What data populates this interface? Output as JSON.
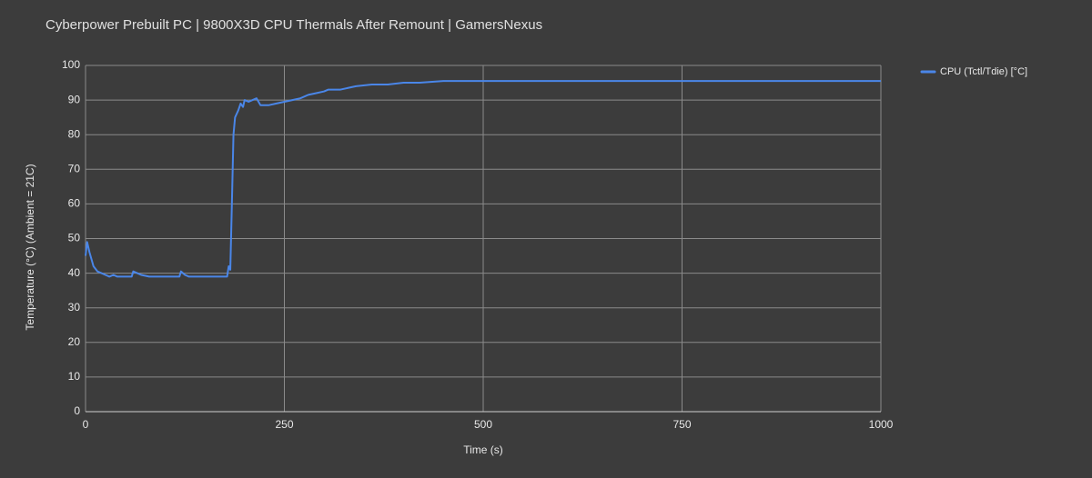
{
  "chart_data": {
    "type": "line",
    "title": "Cyberpower Prebuilt PC | 9800X3D CPU Thermals After Remount | GamersNexus",
    "x_label": "Time (s)",
    "y_label": "Temperature (°C) (Ambient = 21C)",
    "x": [
      0,
      2,
      5,
      10,
      15,
      20,
      25,
      30,
      35,
      40,
      50,
      58,
      60,
      65,
      70,
      80,
      100,
      118,
      120,
      125,
      130,
      150,
      178,
      180,
      182,
      184,
      186,
      188,
      192,
      195,
      198,
      200,
      205,
      210,
      215,
      220,
      230,
      240,
      250,
      260,
      270,
      280,
      290,
      300,
      305,
      320,
      330,
      340,
      360,
      380,
      400,
      420,
      450,
      500,
      550,
      600,
      700,
      800,
      900,
      1000
    ],
    "series": [
      {
        "name": "CPU (Tctl/Tdie) [°C]",
        "color": "#4a86e8",
        "values": [
          45,
          49,
          46,
          42,
          40.5,
          40,
          39.5,
          39,
          39.5,
          39,
          39,
          39,
          40.5,
          40,
          39.5,
          39,
          39,
          39,
          40.5,
          39.5,
          39,
          39,
          39,
          42,
          41,
          60,
          80,
          85,
          87,
          89,
          88,
          90,
          89.5,
          90,
          90.5,
          88.5,
          88.5,
          89,
          89.5,
          90,
          90.5,
          91.5,
          92,
          92.5,
          93,
          93,
          93.5,
          94,
          94.5,
          94.5,
          95,
          95,
          95.5,
          95.5,
          95.5,
          95.5,
          95.5,
          95.5,
          95.5,
          95.5
        ]
      }
    ],
    "xlim": [
      0,
      1000
    ],
    "xticks": [
      0,
      250,
      500,
      750,
      1000
    ],
    "ylim": [
      0,
      100
    ],
    "yticks": [
      0,
      10,
      20,
      30,
      40,
      50,
      60,
      70,
      80,
      90,
      100
    ],
    "grid": true,
    "legend": "top-right"
  }
}
